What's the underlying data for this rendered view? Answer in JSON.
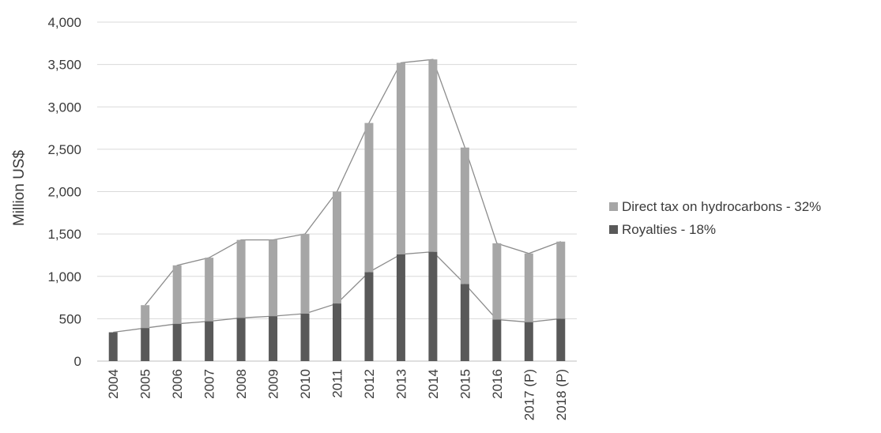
{
  "chart_data": {
    "type": "bar",
    "subtype": "stacked",
    "title": "",
    "xlabel": "",
    "ylabel": "Million US$",
    "ylim": [
      0,
      4000
    ],
    "yticks": [
      0,
      500,
      1000,
      1500,
      2000,
      2500,
      3000,
      3500,
      4000
    ],
    "ytick_labels": [
      "0",
      "500",
      "1,000",
      "1,500",
      "2,000",
      "2,500",
      "3,000",
      "3,500",
      "4,000"
    ],
    "grid": "horizontal",
    "legend_position": "right",
    "categories": [
      "2004",
      "2005",
      "2006",
      "2007",
      "2008",
      "2009",
      "2010",
      "2011",
      "2012",
      "2013",
      "2014",
      "2015",
      "2016",
      "2017 (P)",
      "2018 (P)"
    ],
    "series": [
      {
        "name": "Royalties - 18%",
        "color": "#595959",
        "values": [
          340,
          390,
          440,
          470,
          510,
          530,
          560,
          680,
          1050,
          1260,
          1290,
          910,
          490,
          460,
          500
        ]
      },
      {
        "name": "Direct tax on hydrocarbons - 32%",
        "color": "#a6a6a6",
        "values": [
          0,
          270,
          690,
          750,
          920,
          900,
          940,
          1320,
          1760,
          2260,
          2270,
          1610,
          900,
          810,
          910
        ]
      }
    ],
    "connector_lines": true,
    "connector_color": "#8c8c8c"
  }
}
